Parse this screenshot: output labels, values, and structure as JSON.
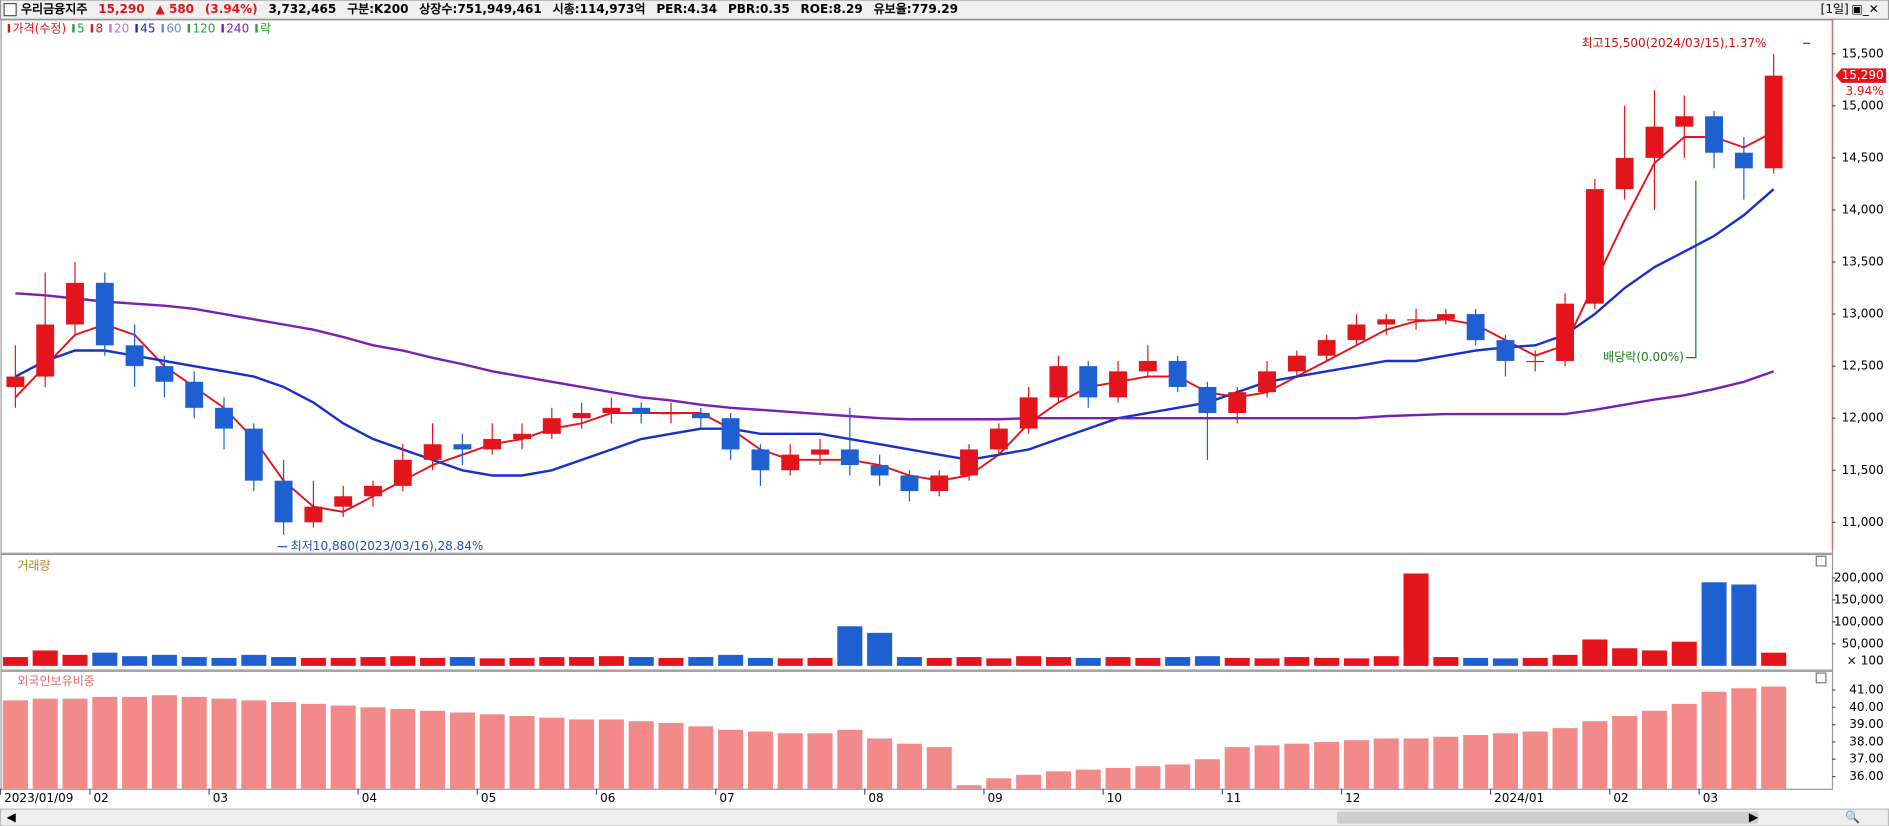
{
  "header": {
    "name": "우리금융지주",
    "price": "15,290",
    "change": "▲ 580",
    "change_rate": "(3.94%)",
    "volume": "3,732,465",
    "fields": [
      "구분:K200",
      "상장수:751,949,461",
      "시총:114,973억",
      "PER:4.34",
      "PBR:0.35",
      "ROE:8.29",
      "유보율:779.29"
    ],
    "period": "[1일]"
  },
  "chart_data": [
    {
      "type": "candlestick",
      "up_color": "#e3141b",
      "down_color": "#1e5fd2",
      "categories": [
        "2023/01/09",
        null,
        null,
        "02",
        null,
        null,
        null,
        "03",
        null,
        null,
        null,
        null,
        "04",
        null,
        null,
        null,
        "05",
        null,
        null,
        null,
        "06",
        null,
        null,
        null,
        "07",
        null,
        null,
        null,
        null,
        "08",
        null,
        null,
        null,
        "09",
        null,
        null,
        null,
        "10",
        null,
        null,
        null,
        "11",
        null,
        null,
        null,
        "12",
        null,
        null,
        null,
        null,
        "2024/01",
        null,
        null,
        null,
        "02",
        null,
        null,
        "03",
        null,
        null
      ],
      "open": [
        12300,
        12400,
        12900,
        13300,
        12700,
        12500,
        12350,
        12100,
        11900,
        11400,
        11000,
        11150,
        11250,
        11350,
        11600,
        11750,
        11700,
        11800,
        11850,
        12000,
        12050,
        12100,
        12050,
        12050,
        12000,
        11700,
        11500,
        11650,
        11700,
        11550,
        11450,
        11300,
        11450,
        11700,
        11900,
        12200,
        12500,
        12200,
        12450,
        12550,
        12300,
        12050,
        12250,
        12450,
        12600,
        12750,
        12900,
        12950,
        12950,
        13000,
        12750,
        12550,
        12550,
        13100,
        14200,
        14500,
        14800,
        14900,
        14550,
        14400
      ],
      "high": [
        12700,
        13400,
        13500,
        13400,
        12900,
        12600,
        12450,
        12200,
        11950,
        11600,
        11400,
        11350,
        11400,
        11750,
        11950,
        11850,
        11950,
        11950,
        12100,
        12150,
        12200,
        12150,
        12150,
        12100,
        12050,
        11750,
        11750,
        11800,
        12100,
        11650,
        11500,
        11500,
        11750,
        11950,
        12300,
        12600,
        12550,
        12550,
        12700,
        12600,
        12350,
        12300,
        12550,
        12650,
        12800,
        13000,
        13000,
        13050,
        13050,
        13050,
        12800,
        12650,
        13200,
        14300,
        15000,
        15150,
        15100,
        14950,
        14700,
        15500
      ],
      "low": [
        12100,
        12300,
        12800,
        12600,
        12300,
        12200,
        12000,
        11700,
        11300,
        10880,
        10950,
        11050,
        11150,
        11300,
        11500,
        11550,
        11650,
        11700,
        11800,
        11900,
        11950,
        11950,
        11950,
        11900,
        11600,
        11350,
        11450,
        11550,
        11450,
        11350,
        11200,
        11250,
        11400,
        11650,
        11850,
        12150,
        12100,
        12150,
        12400,
        12250,
        11600,
        11950,
        12200,
        12400,
        12550,
        12700,
        12800,
        12850,
        12900,
        12700,
        12400,
        12450,
        12500,
        13050,
        14100,
        14000,
        14500,
        14400,
        14100,
        14350
      ],
      "close": [
        12400,
        12900,
        13300,
        12700,
        12500,
        12350,
        12100,
        11900,
        11400,
        11000,
        11150,
        11250,
        11350,
        11600,
        11750,
        11700,
        11800,
        11850,
        12000,
        12050,
        12100,
        12050,
        12050,
        12000,
        11700,
        11500,
        11650,
        11700,
        11550,
        11450,
        11300,
        11450,
        11700,
        11900,
        12200,
        12500,
        12200,
        12450,
        12550,
        12300,
        12050,
        12250,
        12450,
        12600,
        12750,
        12900,
        12950,
        12950,
        13000,
        12750,
        12550,
        12550,
        13100,
        14200,
        14500,
        14800,
        14900,
        14550,
        14400,
        15290
      ],
      "series": [
        {
          "name": "가격(수정)",
          "color": "#e3141b"
        },
        {
          "name": "5",
          "color": "#2ca02c"
        },
        {
          "name": "8",
          "color": "#e3141b",
          "values": [
            12200,
            12500,
            12800,
            12900,
            12800,
            12500,
            12300,
            12100,
            11800,
            11400,
            11150,
            11100,
            11250,
            11400,
            11550,
            11650,
            11750,
            11800,
            11900,
            11950,
            12050,
            12050,
            12050,
            12050,
            11900,
            11700,
            11600,
            11600,
            11600,
            11550,
            11450,
            11400,
            11450,
            11650,
            11950,
            12150,
            12300,
            12350,
            12400,
            12400,
            12250,
            12200,
            12250,
            12400,
            12550,
            12700,
            12850,
            12930,
            12950,
            12900,
            12750,
            12600,
            12700,
            13300,
            13900,
            14450,
            14700,
            14700,
            14600,
            14750
          ]
        },
        {
          "name": "20",
          "color": "#d070c0"
        },
        {
          "name": "45",
          "color": "#1a2fc8",
          "values": [
            12400,
            12550,
            12650,
            12650,
            12600,
            12550,
            12500,
            12450,
            12400,
            12300,
            12150,
            11950,
            11800,
            11700,
            11600,
            11500,
            11450,
            11450,
            11500,
            11600,
            11700,
            11800,
            11850,
            11900,
            11900,
            11850,
            11850,
            11850,
            11800,
            11750,
            11700,
            11650,
            11600,
            11650,
            11700,
            11800,
            11900,
            12000,
            12050,
            12100,
            12150,
            12250,
            12350,
            12400,
            12450,
            12500,
            12550,
            12550,
            12600,
            12650,
            12680,
            12700,
            12800,
            13000,
            13250,
            13450,
            13600,
            13750,
            13950,
            14200
          ]
        },
        {
          "name": "60",
          "color": "#6a8fd8"
        },
        {
          "name": "120",
          "color": "#2ca02c"
        },
        {
          "name": "240",
          "color": "#7a1fb0",
          "values": [
            13200,
            13180,
            13150,
            13120,
            13100,
            13080,
            13050,
            13000,
            12950,
            12900,
            12850,
            12780,
            12700,
            12650,
            12580,
            12520,
            12450,
            12400,
            12350,
            12300,
            12250,
            12200,
            12170,
            12130,
            12100,
            12080,
            12060,
            12040,
            12020,
            12000,
            11990,
            11990,
            11990,
            11990,
            12000,
            12000,
            12000,
            12000,
            12000,
            12000,
            12000,
            12000,
            12000,
            12000,
            12000,
            12000,
            12020,
            12030,
            12040,
            12040,
            12040,
            12040,
            12040,
            12080,
            12130,
            12180,
            12220,
            12280,
            12350,
            12450
          ]
        },
        {
          "name": "락",
          "color": "#2ca02c"
        }
      ],
      "ylim": [
        10720,
        15820
      ],
      "yticks": [
        {
          "value": 15500,
          "label": "15,500"
        },
        {
          "value": 15000,
          "label": "15,000"
        },
        {
          "value": 14500,
          "label": "14,500"
        },
        {
          "value": 14000,
          "label": "14,000"
        },
        {
          "value": 13500,
          "label": "13,500"
        },
        {
          "value": 13000,
          "label": "13,000"
        },
        {
          "value": 12500,
          "label": "12,500"
        },
        {
          "value": 12000,
          "label": "12,000"
        },
        {
          "value": 11500,
          "label": "11,500"
        },
        {
          "value": 11000,
          "label": "11,000"
        }
      ],
      "last_price_label": "15,290",
      "last_change_label": "3.94%",
      "annotations": [
        "최고15,500(2024/03/15),1.37%",
        "최저10,880(2023/03/16),28.84%",
        "배당락(0.00%)"
      ]
    },
    {
      "type": "bar",
      "title": "거래량",
      "unit_label": "× 100",
      "values": [
        20000,
        35000,
        25000,
        30000,
        22000,
        25000,
        20000,
        18000,
        25000,
        20000,
        18000,
        18000,
        20000,
        22000,
        18000,
        20000,
        17000,
        18000,
        20000,
        20000,
        22000,
        20000,
        18000,
        20000,
        25000,
        18000,
        17000,
        18000,
        90000,
        75000,
        20000,
        18000,
        20000,
        17000,
        22000,
        20000,
        18000,
        20000,
        18000,
        20000,
        22000,
        18000,
        17000,
        20000,
        18000,
        17000,
        22000,
        210000,
        20000,
        18000,
        17000,
        18000,
        25000,
        60000,
        40000,
        35000,
        55000,
        190000,
        185000,
        30000
      ],
      "ylim": [
        0,
        230000
      ],
      "yticks": [
        {
          "value": 200000,
          "label": "200,000"
        },
        {
          "value": 150000,
          "label": "150,000"
        },
        {
          "value": 100000,
          "label": "100,000"
        },
        {
          "value": 50000,
          "label": "50,000"
        }
      ]
    },
    {
      "type": "bar",
      "title": "외국인보유비중",
      "color": "#f28a8a",
      "values": [
        40.4,
        40.5,
        40.5,
        40.6,
        40.6,
        40.7,
        40.6,
        40.5,
        40.4,
        40.3,
        40.2,
        40.1,
        40.0,
        39.9,
        39.8,
        39.7,
        39.6,
        39.5,
        39.4,
        39.3,
        39.3,
        39.2,
        39.1,
        38.9,
        38.7,
        38.6,
        38.5,
        38.5,
        38.7,
        38.2,
        37.9,
        37.7,
        35.5,
        35.9,
        36.1,
        36.3,
        36.4,
        36.5,
        36.6,
        36.7,
        37.0,
        37.7,
        37.8,
        37.9,
        38.0,
        38.1,
        38.2,
        38.2,
        38.3,
        38.4,
        38.5,
        38.6,
        38.8,
        39.2,
        39.5,
        39.8,
        40.2,
        40.9,
        41.1,
        41.2
      ],
      "ylim": [
        35.3,
        41.7
      ],
      "yticks": [
        {
          "value": 41,
          "label": "41.00"
        },
        {
          "value": 40,
          "label": "40.00"
        },
        {
          "value": 39,
          "label": "39.00"
        },
        {
          "value": 38,
          "label": "38.00"
        },
        {
          "value": 37,
          "label": "37.00"
        },
        {
          "value": 36,
          "label": "36.00"
        }
      ]
    }
  ]
}
